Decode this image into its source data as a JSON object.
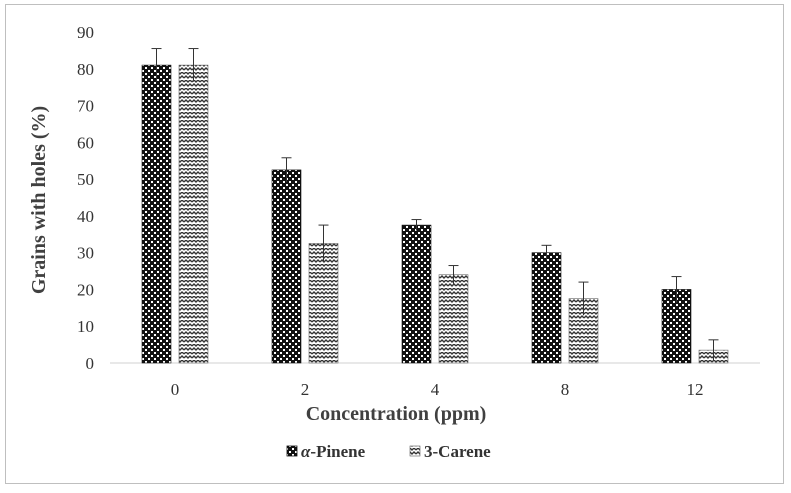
{
  "chart_data": {
    "type": "bar",
    "xlabel": "Concentration (ppm)",
    "ylabel": "Grains with holes (%)",
    "categories": [
      "0",
      "2",
      "4",
      "8",
      "12"
    ],
    "ylim": [
      0,
      90
    ],
    "yticks": [
      0,
      10,
      20,
      30,
      40,
      50,
      60,
      70,
      80,
      90
    ],
    "grid": false,
    "legend_position": "bottom",
    "series": [
      {
        "name": "α-Pinene",
        "legend_prefix": "α",
        "legend_suffix": "-Pinene",
        "values": [
          81,
          52.5,
          37.5,
          30,
          20
        ],
        "errors": [
          4.5,
          3.3,
          1.5,
          2,
          3.5
        ],
        "color": "#1a1a1a",
        "pattern": "dense-diamond-check"
      },
      {
        "name": "3-Carene",
        "values": [
          81,
          32.5,
          24,
          17.5,
          3.5
        ],
        "errors": [
          4.5,
          5,
          2.5,
          4.5,
          2.8
        ],
        "color": "#404040",
        "pattern": "zigzag-hatch"
      }
    ]
  }
}
